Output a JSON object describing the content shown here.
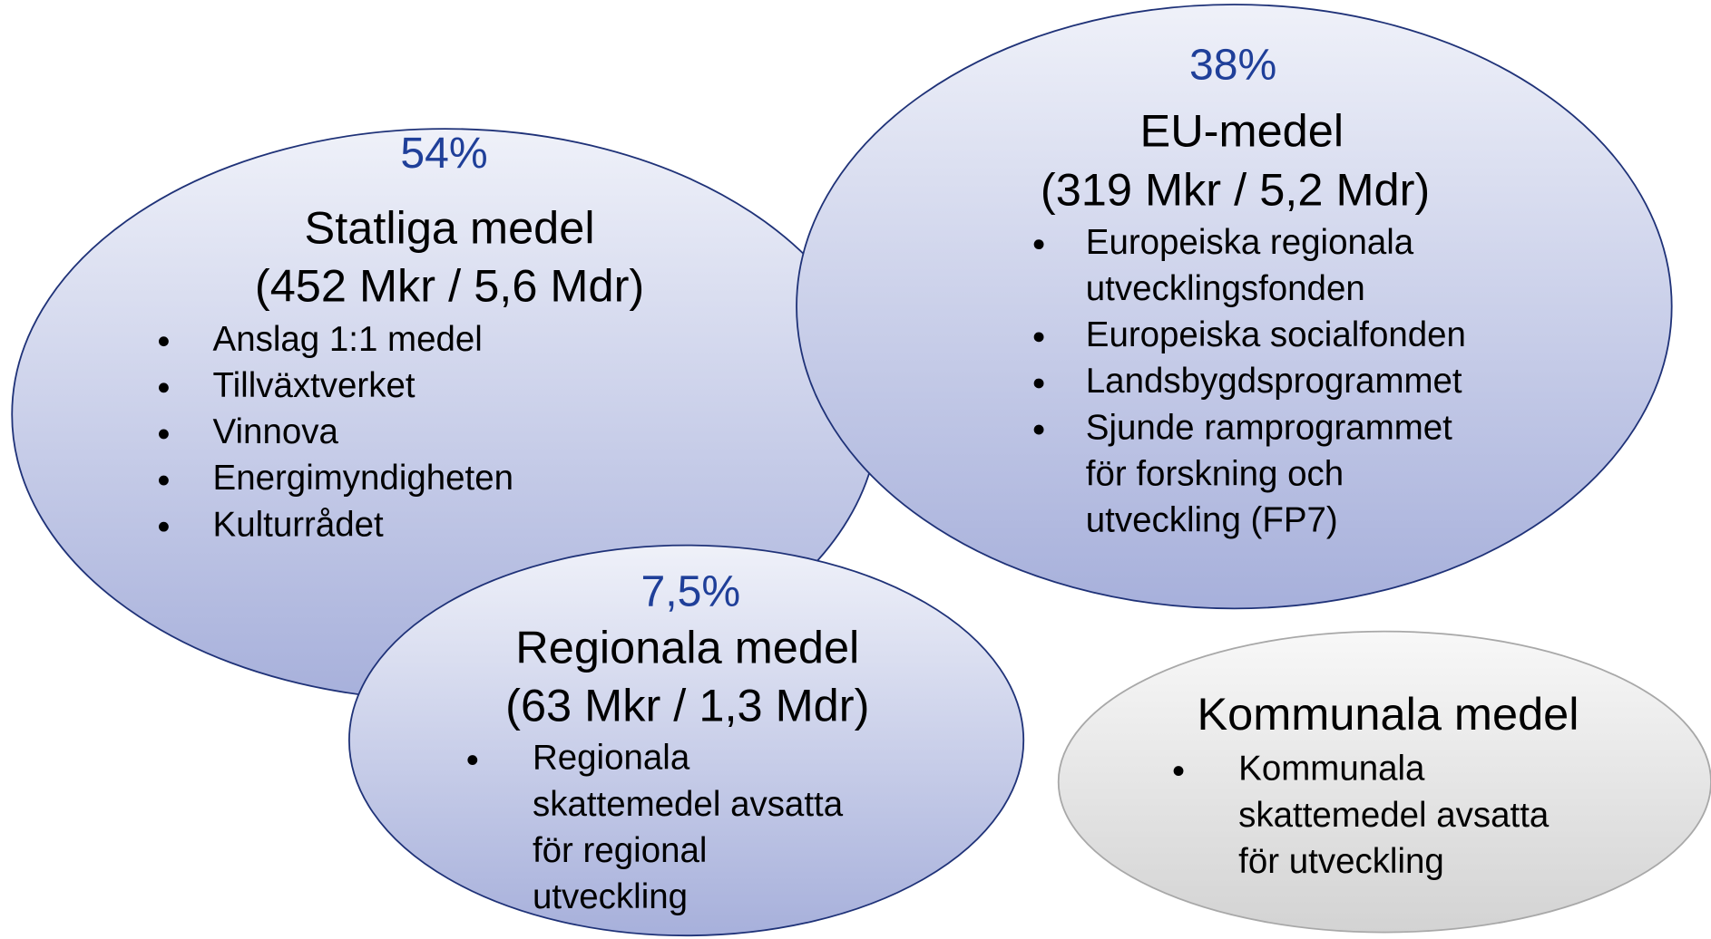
{
  "nodes": [
    {
      "percent": "54%",
      "title": "Statliga medel",
      "amount": "(452 Mkr / 5,6 Mdr)",
      "items": [
        [
          "Anslag 1:1 medel"
        ],
        [
          "Tillväxtverket"
        ],
        [
          "Vinnova"
        ],
        [
          "Energimyndigheten"
        ],
        [
          "Kulturrådet"
        ]
      ]
    },
    {
      "percent": "38%",
      "title": "EU-medel",
      "amount": "(319 Mkr / 5,2 Mdr)",
      "items": [
        [
          "Europeiska regionala",
          "utvecklingsfonden"
        ],
        [
          "Europeiska socialfonden"
        ],
        [
          "Landsbygdsprogrammet"
        ],
        [
          "Sjunde ramprogrammet",
          "för forskning och",
          "utveckling (FP7)"
        ]
      ]
    },
    {
      "percent": "7,5%",
      "title": "Regionala medel",
      "amount": "(63 Mkr / 1,3 Mdr)",
      "items": [
        [
          "Regionala",
          "skattemedel avsatta",
          "för regional",
          "utveckling"
        ]
      ]
    },
    {
      "title": "Kommunala medel",
      "items": [
        [
          "Kommunala",
          "skattemedel avsatta",
          "för utveckling"
        ]
      ]
    }
  ]
}
